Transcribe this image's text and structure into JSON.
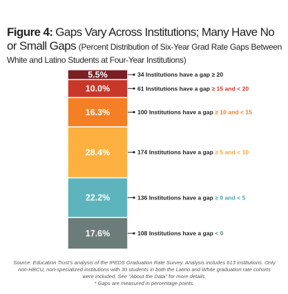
{
  "chart_data": {
    "type": "bar",
    "stacked": true,
    "figure_label": "Figure 4:",
    "title": "Gaps Vary Across Institutions; Many Have No or Small Gaps",
    "subtitle": "(Percent Distribution of Six-Year Grad Rate Gaps Between White and Latino Students at Four-Year Institutions)",
    "categories": [
      null
    ],
    "ylim": [
      0,
      100
    ],
    "series": [
      {
        "name": "< 0",
        "color": "#6c7c79",
        "label_color": "#6c7c79",
        "values": [
          17.6
        ],
        "value_labels": [
          "17.6%"
        ],
        "annotation": "108 Institutions have a gap"
      },
      {
        "name": "≥ 0 and < 5",
        "color": "#5eb4bc",
        "label_color": "#4ba5ae",
        "values": [
          22.2
        ],
        "value_labels": [
          "22.2%"
        ],
        "annotation": "136 Institutions have a gap"
      },
      {
        "name": "≥ 5 and < 10",
        "color": "#fbb040",
        "label_color": "#f4a52c",
        "values": [
          28.4
        ],
        "value_labels": [
          "28.4%"
        ],
        "annotation": "174 Institutions have a gap"
      },
      {
        "name": "≥ 10 and < 15",
        "color": "#f47f24",
        "label_color": "#ee7a1e",
        "values": [
          16.3
        ],
        "value_labels": [
          "16.3%"
        ],
        "annotation": "100 Institutions have a gap"
      },
      {
        "name": "≥ 15 and < 20",
        "color": "#c8372a",
        "label_color": "#c8372a",
        "values": [
          10.0
        ],
        "value_labels": [
          "10.0%"
        ],
        "annotation": "61 Institutions have a gap"
      },
      {
        "name": "≥ 20",
        "color": "#7a1f24",
        "label_color": "#222222",
        "values": [
          5.5
        ],
        "value_labels": [
          "5.5%"
        ],
        "annotation": "34 Institutions have a gap"
      }
    ],
    "source": "Source: Education Trust's analysis of the IPEDS Graduation Rate Survey. Analysis includes 613 institutions. Only non-HBCU, non-specialized institutions with 30 students in both the Latino and White graduation rate cohorts were included. See \"About the Data\" for more details.",
    "note": "* Gaps are measured in percentage points."
  }
}
